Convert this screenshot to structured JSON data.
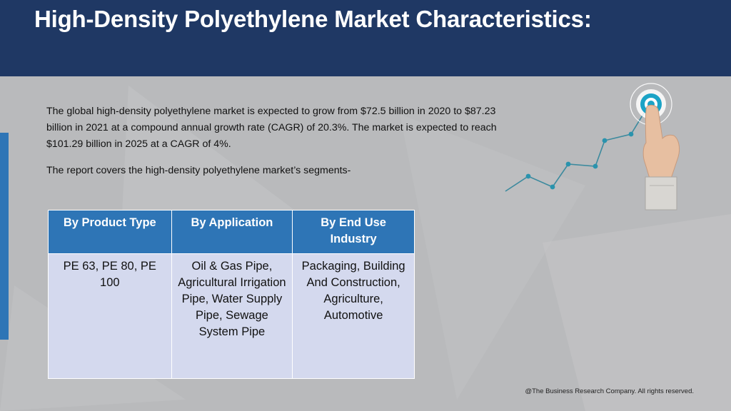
{
  "slide": {
    "title": "High-Density Polyethylene Market Characteristics:",
    "intro": "The global high-density polyethylene market is expected to grow from $72.5 billion in 2020 to $87.23 billion in 2021 at a compound annual growth rate (CAGR) of 20.3%. The market is expected to reach $101.29 billion in 2025 at a CAGR of 4%.",
    "segments_intro": "The report covers the high-density polyethylene market’s segments-",
    "footer": "@The Business Research Company. All rights reserved."
  },
  "table": {
    "headers": [
      "By Product Type",
      "By Application",
      "By End Use Industry"
    ],
    "cells": [
      "PE 63, PE 80, PE 100",
      "Oil & Gas Pipe, Agricultural Irrigation Pipe, Water Supply Pipe, Sewage System Pipe",
      "Packaging, Building And Construction, Agriculture, Automotive"
    ]
  },
  "colors": {
    "header_band": "#1f3864",
    "accent_blue": "#2e75b6",
    "cell_fill": "#d4d9ee",
    "background": "#b9babc",
    "target_teal": "#1ba3c6"
  },
  "icons": [
    "growth-line-chart-icon",
    "target-icon",
    "pointing-hand-icon"
  ]
}
